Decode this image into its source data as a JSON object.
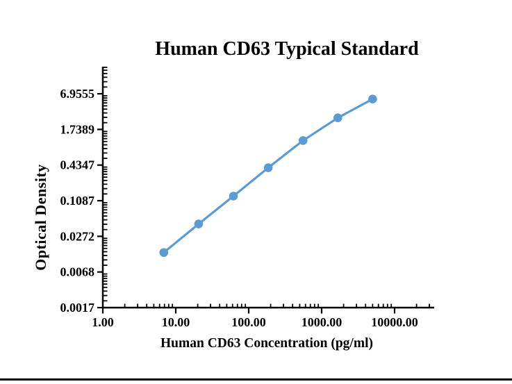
{
  "page": {
    "background_color": "#ffffff",
    "footer_rule_color": "#000000"
  },
  "chart_data": {
    "type": "line",
    "title": "Human CD63 Typical Standard",
    "xlabel": "Human CD63 Concentration (pg/ml)",
    "ylabel": "Optical Density",
    "x_scale": "log",
    "y_scale": "log",
    "grid": false,
    "axis_color": "#000000",
    "xlim": [
      1,
      30000
    ],
    "ylim": [
      0.0017,
      20
    ],
    "x_ticks": [
      {
        "value": 1,
        "label": "1.00"
      },
      {
        "value": 10,
        "label": "10.00"
      },
      {
        "value": 100,
        "label": "100.00"
      },
      {
        "value": 1000,
        "label": "1000.00"
      },
      {
        "value": 10000,
        "label": "10000.00"
      }
    ],
    "y_ticks": [
      {
        "value": 0.0017,
        "label": "0.0017"
      },
      {
        "value": 0.0068,
        "label": "0.0068"
      },
      {
        "value": 0.0272,
        "label": "0.0272"
      },
      {
        "value": 0.1087,
        "label": "0.1087"
      },
      {
        "value": 0.4347,
        "label": "0.4347"
      },
      {
        "value": 1.7389,
        "label": "1.7389"
      },
      {
        "value": 6.9555,
        "label": "6.9555"
      }
    ],
    "series": [
      {
        "name": "Typical Standard",
        "x": [
          6.86,
          20.58,
          61.73,
          185.19,
          555.56,
          1666.67,
          5000
        ],
        "y": [
          0.0145,
          0.044,
          0.13,
          0.392,
          1.128,
          2.73,
          5.67
        ],
        "color": "#5B9BD5",
        "marker": "circle"
      }
    ]
  }
}
